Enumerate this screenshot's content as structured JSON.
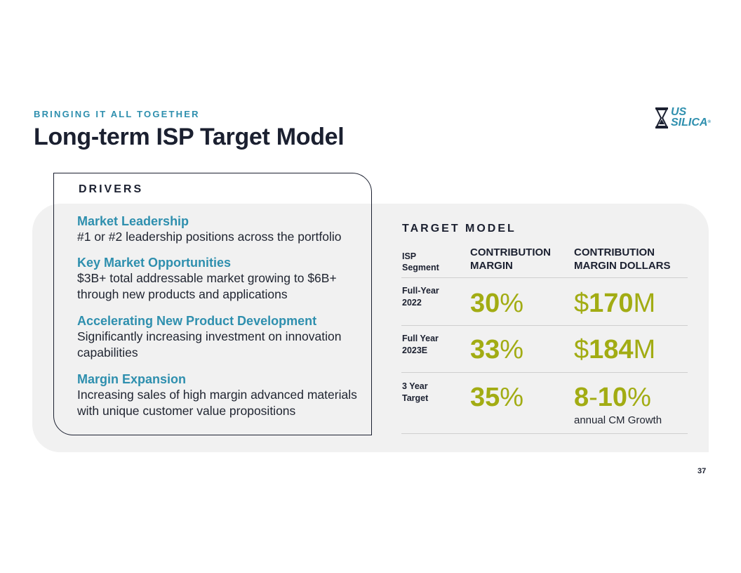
{
  "header": {
    "eyebrow": "BRINGING IT ALL TOGETHER",
    "title": "Long-term ISP Target Model",
    "logo_line1": "US",
    "logo_line2": "SILICA",
    "logo_icon": "hourglass-icon"
  },
  "drivers": {
    "heading": "DRIVERS",
    "items": [
      {
        "title": "Market Leadership",
        "text": "#1 or #2 leadership positions across the portfolio"
      },
      {
        "title": "Key Market Opportunities",
        "text": "$3B+ total addressable market growing to $6B+ through new products and applications"
      },
      {
        "title": "Accelerating New Product Development",
        "text": "Significantly increasing investment on innovation capabilities"
      },
      {
        "title": "Margin Expansion",
        "text": "Increasing sales of high margin advanced materials with unique customer value propositions"
      }
    ]
  },
  "target_model": {
    "heading": "TARGET MODEL",
    "col_segment": [
      "ISP",
      "Segment"
    ],
    "col_margin": [
      "CONTRIBUTION",
      "MARGIN"
    ],
    "col_dollars": [
      "CONTRIBUTION",
      "MARGIN DOLLARS"
    ],
    "rows": [
      {
        "label": [
          "Full-Year",
          "2022"
        ],
        "margin_num": "30",
        "margin_unit": "%",
        "dollars_pre": "$",
        "dollars_num": "170",
        "dollars_unit": "M"
      },
      {
        "label": [
          "Full Year",
          "2023E"
        ],
        "margin_num": "33",
        "margin_unit": "%",
        "dollars_pre": "$",
        "dollars_num": "184",
        "dollars_unit": "M"
      },
      {
        "label": [
          "3 Year",
          "Target"
        ],
        "margin_num": "35",
        "margin_unit": "%",
        "dollars_pre": "",
        "dollars_num": "8",
        "dollars_mid": "-",
        "dollars_num2": "10",
        "dollars_unit": "%",
        "dollars_sub": "annual CM Growth"
      }
    ]
  },
  "colors": {
    "accent_teal": "#2e8fae",
    "accent_green": "#a2ac13",
    "dark": "#1b2030"
  },
  "page_number": "37"
}
